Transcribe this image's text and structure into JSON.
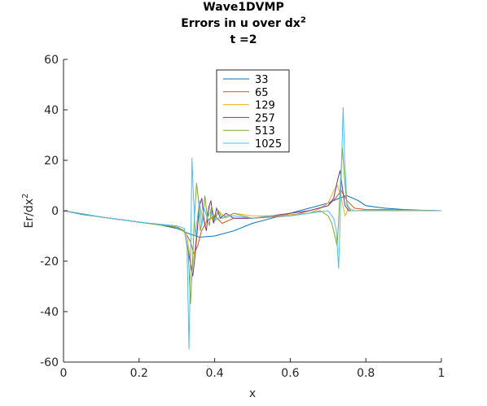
{
  "chart_data": {
    "type": "line",
    "title_lines": [
      "Wave1DVMP",
      "Errors in u over dx",
      "t =2"
    ],
    "title_superscript": "2",
    "xlabel": "x",
    "ylabel": "Er/dx",
    "ylabel_superscript": "2",
    "xlim": [
      0,
      1
    ],
    "ylim": [
      -60,
      60
    ],
    "xticks": [
      0,
      0.2,
      0.4,
      0.6,
      0.8,
      1
    ],
    "xtick_labels": [
      "0",
      "0.2",
      "0.4",
      "0.6",
      "0.8",
      "1"
    ],
    "yticks": [
      60,
      40,
      20,
      0,
      -20,
      -40,
      -60
    ],
    "ytick_labels": [
      "60",
      "40",
      "20",
      "0",
      "-20",
      "-40",
      "-60"
    ],
    "grid": false,
    "legend_position": "top-center",
    "series": [
      {
        "name": "33",
        "color": "#0072BD",
        "points": [
          [
            0,
            0
          ],
          [
            0.05,
            -1.5
          ],
          [
            0.1,
            -2.5
          ],
          [
            0.15,
            -3.5
          ],
          [
            0.2,
            -4.5
          ],
          [
            0.25,
            -5.5
          ],
          [
            0.3,
            -7
          ],
          [
            0.33,
            -9
          ],
          [
            0.36,
            -10.5
          ],
          [
            0.4,
            -10
          ],
          [
            0.45,
            -8
          ],
          [
            0.5,
            -5
          ],
          [
            0.55,
            -3
          ],
          [
            0.6,
            -1
          ],
          [
            0.65,
            1
          ],
          [
            0.7,
            3
          ],
          [
            0.73,
            5
          ],
          [
            0.75,
            6
          ],
          [
            0.78,
            4
          ],
          [
            0.8,
            2
          ],
          [
            0.85,
            1
          ],
          [
            0.9,
            0.5
          ],
          [
            0.95,
            0.2
          ],
          [
            1,
            0
          ]
        ]
      },
      {
        "name": "65",
        "color": "#D95319",
        "points": [
          [
            0,
            0
          ],
          [
            0.1,
            -2.5
          ],
          [
            0.2,
            -4.5
          ],
          [
            0.3,
            -6.5
          ],
          [
            0.32,
            -8
          ],
          [
            0.335,
            -12
          ],
          [
            0.345,
            -17
          ],
          [
            0.355,
            -14
          ],
          [
            0.365,
            -8
          ],
          [
            0.38,
            -4
          ],
          [
            0.4,
            -2
          ],
          [
            0.42,
            -5
          ],
          [
            0.45,
            -3
          ],
          [
            0.5,
            -3
          ],
          [
            0.55,
            -2.5
          ],
          [
            0.6,
            -2
          ],
          [
            0.65,
            0
          ],
          [
            0.7,
            2
          ],
          [
            0.72,
            5
          ],
          [
            0.735,
            8
          ],
          [
            0.75,
            4
          ],
          [
            0.77,
            1
          ],
          [
            0.8,
            0.5
          ],
          [
            0.85,
            0.5
          ],
          [
            0.9,
            0.3
          ],
          [
            1,
            0
          ]
        ]
      },
      {
        "name": "129",
        "color": "#EDB120",
        "points": [
          [
            0,
            0
          ],
          [
            0.1,
            -2.5
          ],
          [
            0.2,
            -4.5
          ],
          [
            0.3,
            -6.5
          ],
          [
            0.325,
            -9
          ],
          [
            0.335,
            -18
          ],
          [
            0.34,
            -24
          ],
          [
            0.347,
            -16
          ],
          [
            0.355,
            -6
          ],
          [
            0.36,
            2
          ],
          [
            0.368,
            -2
          ],
          [
            0.375,
            -6
          ],
          [
            0.385,
            2
          ],
          [
            0.395,
            -4
          ],
          [
            0.41,
            0
          ],
          [
            0.43,
            -3
          ],
          [
            0.45,
            -1
          ],
          [
            0.5,
            -2
          ],
          [
            0.55,
            -2
          ],
          [
            0.6,
            -1.5
          ],
          [
            0.65,
            -1
          ],
          [
            0.68,
            1
          ],
          [
            0.7,
            3
          ],
          [
            0.715,
            8
          ],
          [
            0.725,
            10
          ],
          [
            0.735,
            5
          ],
          [
            0.745,
            -2
          ],
          [
            0.755,
            1
          ],
          [
            0.77,
            0
          ],
          [
            0.8,
            0.3
          ],
          [
            0.9,
            0.2
          ],
          [
            1,
            0
          ]
        ]
      },
      {
        "name": "257",
        "color": "#7E2F8E",
        "points": [
          [
            0,
            0
          ],
          [
            0.1,
            -2.5
          ],
          [
            0.2,
            -4.5
          ],
          [
            0.3,
            -6.5
          ],
          [
            0.32,
            -8
          ],
          [
            0.335,
            -20
          ],
          [
            0.342,
            -26
          ],
          [
            0.348,
            -18
          ],
          [
            0.355,
            -6
          ],
          [
            0.36,
            2
          ],
          [
            0.366,
            5
          ],
          [
            0.372,
            -4
          ],
          [
            0.378,
            -8
          ],
          [
            0.384,
            1
          ],
          [
            0.39,
            4
          ],
          [
            0.397,
            -5
          ],
          [
            0.405,
            1
          ],
          [
            0.415,
            -3
          ],
          [
            0.43,
            -1
          ],
          [
            0.45,
            -3
          ],
          [
            0.5,
            -3
          ],
          [
            0.55,
            -2
          ],
          [
            0.6,
            -1
          ],
          [
            0.65,
            0
          ],
          [
            0.7,
            2
          ],
          [
            0.715,
            5
          ],
          [
            0.725,
            12
          ],
          [
            0.732,
            16
          ],
          [
            0.738,
            9
          ],
          [
            0.745,
            2
          ],
          [
            0.755,
            0
          ],
          [
            0.8,
            0
          ],
          [
            0.9,
            0
          ],
          [
            1,
            0
          ]
        ]
      },
      {
        "name": "513",
        "color": "#77AC30",
        "points": [
          [
            0,
            0
          ],
          [
            0.1,
            -2.5
          ],
          [
            0.2,
            -4.5
          ],
          [
            0.3,
            -6.5
          ],
          [
            0.32,
            -8
          ],
          [
            0.33,
            -16
          ],
          [
            0.336,
            -37
          ],
          [
            0.341,
            -22
          ],
          [
            0.346,
            -4
          ],
          [
            0.352,
            11
          ],
          [
            0.358,
            3
          ],
          [
            0.362,
            -8
          ],
          [
            0.368,
            -3
          ],
          [
            0.374,
            6
          ],
          [
            0.38,
            -2
          ],
          [
            0.386,
            -6
          ],
          [
            0.392,
            2
          ],
          [
            0.4,
            -4
          ],
          [
            0.41,
            0
          ],
          [
            0.42,
            -3
          ],
          [
            0.45,
            -1
          ],
          [
            0.5,
            -3
          ],
          [
            0.55,
            -2
          ],
          [
            0.6,
            -2
          ],
          [
            0.65,
            -1
          ],
          [
            0.68,
            0
          ],
          [
            0.7,
            -2
          ],
          [
            0.71,
            -5
          ],
          [
            0.718,
            -10
          ],
          [
            0.724,
            -14
          ],
          [
            0.728,
            -4
          ],
          [
            0.733,
            12
          ],
          [
            0.738,
            25
          ],
          [
            0.743,
            14
          ],
          [
            0.75,
            2
          ],
          [
            0.76,
            0
          ],
          [
            0.8,
            0
          ],
          [
            1,
            0
          ]
        ]
      },
      {
        "name": "1025",
        "color": "#4DBEEE",
        "points": [
          [
            0,
            0
          ],
          [
            0.1,
            -2.5
          ],
          [
            0.2,
            -4.5
          ],
          [
            0.3,
            -6
          ],
          [
            0.32,
            -7
          ],
          [
            0.327,
            -15
          ],
          [
            0.332,
            -55
          ],
          [
            0.336,
            -20
          ],
          [
            0.34,
            21
          ],
          [
            0.344,
            5
          ],
          [
            0.349,
            -10
          ],
          [
            0.355,
            -2
          ],
          [
            0.36,
            4
          ],
          [
            0.366,
            -6
          ],
          [
            0.372,
            1
          ],
          [
            0.38,
            -3
          ],
          [
            0.39,
            0
          ],
          [
            0.4,
            -4
          ],
          [
            0.42,
            -2
          ],
          [
            0.45,
            -2
          ],
          [
            0.5,
            -3
          ],
          [
            0.55,
            -2
          ],
          [
            0.6,
            -2
          ],
          [
            0.65,
            -1
          ],
          [
            0.7,
            0
          ],
          [
            0.715,
            -3
          ],
          [
            0.722,
            -8
          ],
          [
            0.728,
            -23
          ],
          [
            0.732,
            -4
          ],
          [
            0.736,
            20
          ],
          [
            0.74,
            41
          ],
          [
            0.744,
            20
          ],
          [
            0.75,
            3
          ],
          [
            0.76,
            0
          ],
          [
            0.8,
            0
          ],
          [
            1,
            0
          ]
        ]
      }
    ]
  }
}
